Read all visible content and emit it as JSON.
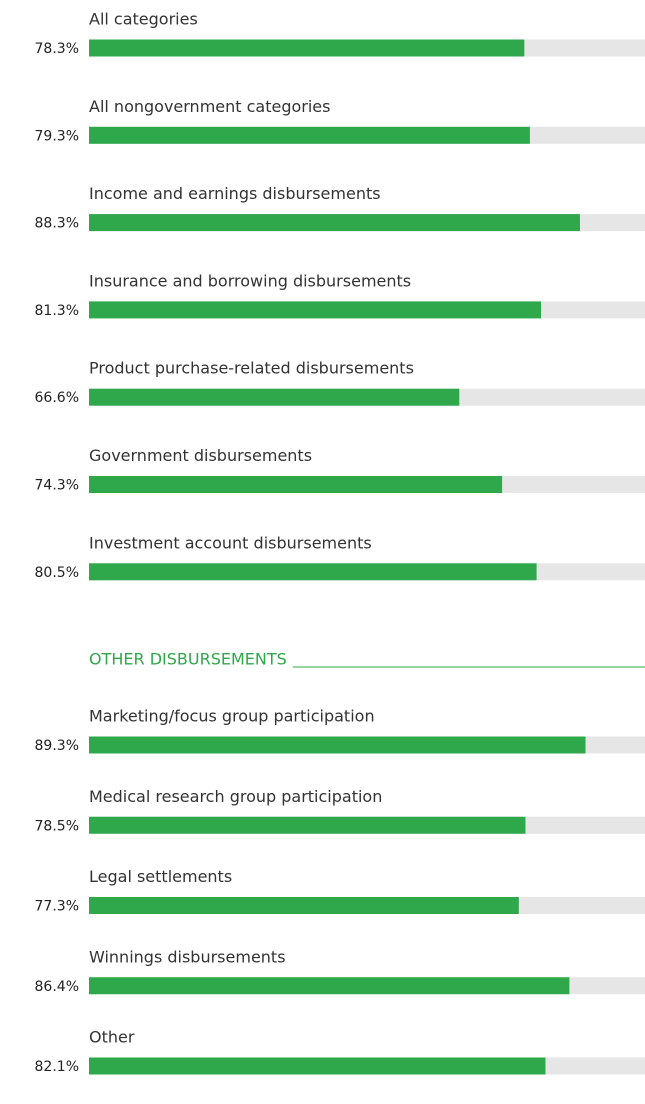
{
  "chart_data": [
    {
      "type": "bar",
      "categories": [
        "All categories",
        "All nongovernment categories",
        "Income and earnings disbursements",
        "Insurance and borrowing disbursements",
        "Product purchase-related disbursements",
        "Government disbursements",
        "Investment account disbursements"
      ],
      "values": [
        78.3,
        79.3,
        88.3,
        81.3,
        66.6,
        74.3,
        80.5
      ],
      "value_labels": [
        "78.3%",
        "79.3%",
        "88.3%",
        "81.3%",
        "66.6%",
        "74.3%",
        "80.5%"
      ],
      "color": "#2ea84a",
      "xlim": [
        0,
        100
      ]
    },
    {
      "type": "bar",
      "title": "OTHER DISBURSEMENTS",
      "categories": [
        "Marketing/focus group participation",
        "Medical research group participation",
        "Legal settlements",
        "Winnings disbursements",
        "Other"
      ],
      "values": [
        89.3,
        78.5,
        77.3,
        86.4,
        82.1
      ],
      "value_labels": [
        "89.3%",
        "78.5%",
        "77.3%",
        "86.4%",
        "82.1%"
      ],
      "color": "#2ea84a",
      "xlim": [
        0,
        100
      ]
    }
  ]
}
